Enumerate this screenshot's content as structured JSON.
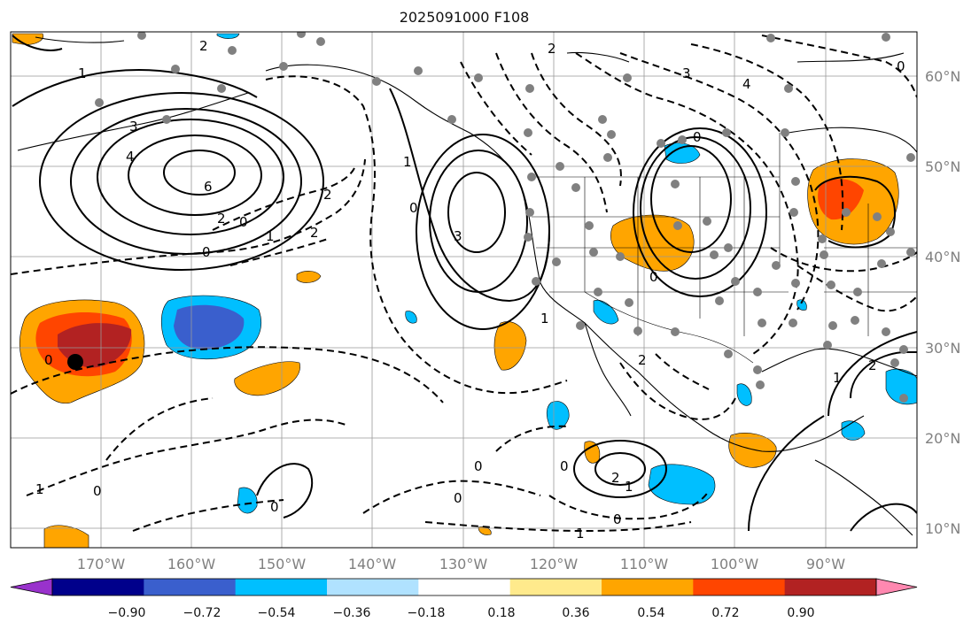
{
  "title": "2025091000 F108",
  "map": {
    "lon_labels": [
      "170°W",
      "160°W",
      "150°W",
      "140°W",
      "130°W",
      "120°W",
      "110°W",
      "100°W",
      "90°W"
    ],
    "lat_labels": [
      "60°N",
      "50°N",
      "40°N",
      "30°N",
      "20°N",
      "10°N"
    ],
    "contour_labels": [
      "1",
      "2",
      "3",
      "4",
      "6",
      "2",
      "0",
      "1",
      "0",
      "0",
      "3",
      "0",
      "1",
      "2",
      "0",
      "2",
      "0",
      "1",
      "2",
      "0",
      "1",
      "0",
      "2",
      "3",
      "4",
      "0",
      "2",
      "1",
      "0",
      "2",
      "1",
      "0",
      "1",
      "0",
      "0"
    ],
    "colors": {
      "contour": "#000000",
      "grid": "#999999",
      "markers": "#808080",
      "storm_center": "#000000"
    }
  },
  "colorbar": {
    "tick_labels": [
      "−0.90",
      "−0.72",
      "−0.54",
      "−0.36",
      "−0.18",
      "0.18",
      "0.36",
      "0.54",
      "0.72",
      "0.90"
    ],
    "colors": [
      "#9932cc",
      "#00008b",
      "#3a5fcd",
      "#00bfff",
      "#b0e2ff",
      "#ffffff",
      "#ffea8c",
      "#ffa500",
      "#ff4500",
      "#b22222",
      "#ff88b0"
    ]
  }
}
